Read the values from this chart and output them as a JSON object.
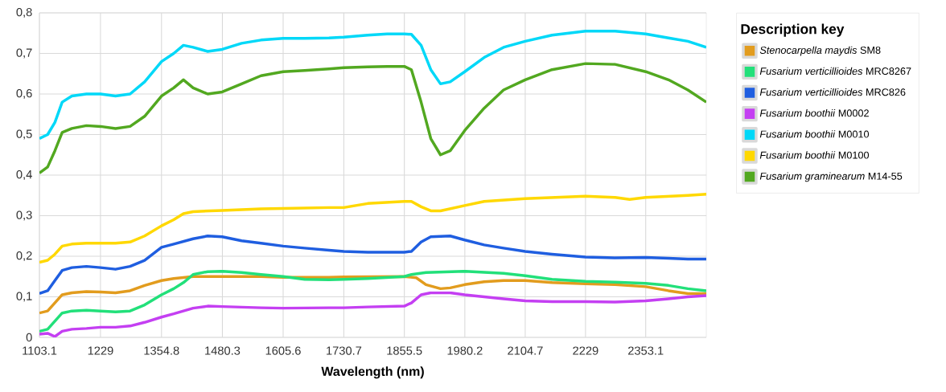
{
  "chart_data": {
    "type": "line",
    "xlabel": "Wavelength (nm)",
    "legend_title": "Description key",
    "legend": "right",
    "grid": true,
    "xlim": [
      1103.1,
      2478
    ],
    "ylim": [
      0,
      0.8
    ],
    "xticks": [
      1103.1,
      1229,
      1354.8,
      1480.3,
      1605.6,
      1730.7,
      1855.5,
      1980.2,
      2104.7,
      2229,
      2353.1
    ],
    "yticks": [
      0,
      {
        "value": 0.1,
        "label": "0,1"
      },
      {
        "value": 0.2,
        "label": "0,2"
      },
      {
        "value": 0.3,
        "label": "0,3"
      },
      {
        "value": 0.4,
        "label": "0,4"
      },
      {
        "value": 0.5,
        "label": "0,5"
      },
      {
        "value": 0.6,
        "label": "0,6"
      },
      {
        "value": 0.7,
        "label": "0,7"
      },
      {
        "value": 0.8,
        "label": "0,8"
      }
    ],
    "series": [
      {
        "name": "*Stenocarpella maydis* SM8",
        "color": "#e29c1e",
        "x": [
          1103.1,
          1120,
          1135,
          1150,
          1170,
          1200,
          1229,
          1260,
          1290,
          1320,
          1354.8,
          1380,
          1420,
          1480,
          1560,
          1605.6,
          1700,
          1730.7,
          1855.5,
          1880,
          1900,
          1930,
          1950,
          1980,
          2020,
          2060,
          2104.7,
          2160,
          2229,
          2290,
          2353.1,
          2400,
          2440,
          2478
        ],
        "values": [
          0.06,
          0.065,
          0.085,
          0.105,
          0.11,
          0.113,
          0.112,
          0.11,
          0.115,
          0.128,
          0.14,
          0.145,
          0.15,
          0.15,
          0.15,
          0.148,
          0.148,
          0.149,
          0.15,
          0.147,
          0.13,
          0.12,
          0.122,
          0.13,
          0.137,
          0.14,
          0.14,
          0.135,
          0.132,
          0.13,
          0.125,
          0.115,
          0.108,
          0.108
        ]
      },
      {
        "name": "*Fusarium verticillioides* MRC8267",
        "color": "#22e07a",
        "x": [
          1103.1,
          1120,
          1135,
          1150,
          1170,
          1200,
          1229,
          1260,
          1290,
          1320,
          1354.8,
          1380,
          1400,
          1420,
          1450,
          1480,
          1520,
          1560,
          1605.6,
          1650,
          1700,
          1730.7,
          1780,
          1855.5,
          1870,
          1900,
          1980,
          2060,
          2104.7,
          2160,
          2229,
          2290,
          2353.1,
          2400,
          2440,
          2478
        ],
        "values": [
          0.015,
          0.02,
          0.04,
          0.06,
          0.065,
          0.067,
          0.065,
          0.063,
          0.065,
          0.08,
          0.105,
          0.12,
          0.135,
          0.155,
          0.162,
          0.163,
          0.16,
          0.155,
          0.15,
          0.143,
          0.142,
          0.143,
          0.145,
          0.15,
          0.155,
          0.16,
          0.163,
          0.158,
          0.152,
          0.143,
          0.138,
          0.136,
          0.133,
          0.128,
          0.12,
          0.115
        ]
      },
      {
        "name": "*Fusarium verticillioides* MRC826",
        "color": "#1f5ee0",
        "x": [
          1103.1,
          1120,
          1135,
          1150,
          1170,
          1200,
          1229,
          1260,
          1290,
          1320,
          1354.8,
          1380,
          1420,
          1450,
          1480,
          1520,
          1560,
          1605.6,
          1650,
          1700,
          1730.7,
          1780,
          1855.5,
          1870,
          1890,
          1910,
          1950,
          1980,
          2020,
          2060,
          2104.7,
          2160,
          2229,
          2290,
          2353.1,
          2400,
          2440,
          2478
        ],
        "values": [
          0.108,
          0.115,
          0.14,
          0.165,
          0.172,
          0.175,
          0.172,
          0.168,
          0.175,
          0.19,
          0.222,
          0.23,
          0.243,
          0.25,
          0.248,
          0.238,
          0.232,
          0.225,
          0.22,
          0.215,
          0.212,
          0.21,
          0.21,
          0.212,
          0.235,
          0.248,
          0.25,
          0.24,
          0.228,
          0.22,
          0.212,
          0.205,
          0.198,
          0.196,
          0.197,
          0.195,
          0.193,
          0.193
        ]
      },
      {
        "name": "*Fusarium boothii* M0002",
        "color": "#c43ff2",
        "x": [
          1103.1,
          1120,
          1135,
          1150,
          1170,
          1200,
          1229,
          1260,
          1290,
          1320,
          1354.8,
          1380,
          1420,
          1450,
          1480,
          1560,
          1605.6,
          1700,
          1730.7,
          1780,
          1855.5,
          1870,
          1890,
          1910,
          1950,
          1980,
          2060,
          2104.7,
          2160,
          2229,
          2290,
          2353.1,
          2400,
          2440,
          2478
        ],
        "values": [
          0.008,
          0.01,
          0.002,
          0.015,
          0.02,
          0.022,
          0.025,
          0.025,
          0.028,
          0.037,
          0.05,
          0.058,
          0.072,
          0.077,
          0.076,
          0.073,
          0.072,
          0.073,
          0.073,
          0.075,
          0.077,
          0.085,
          0.105,
          0.11,
          0.11,
          0.105,
          0.095,
          0.09,
          0.088,
          0.088,
          0.087,
          0.09,
          0.095,
          0.1,
          0.103
        ]
      },
      {
        "name": "*Fusarium boothii* M0010",
        "color": "#00d8f8",
        "x": [
          1103.1,
          1120,
          1135,
          1150,
          1170,
          1200,
          1229,
          1260,
          1290,
          1320,
          1354.8,
          1380,
          1400,
          1420,
          1450,
          1480,
          1520,
          1560,
          1605.6,
          1650,
          1700,
          1730.7,
          1780,
          1820,
          1855.5,
          1870,
          1890,
          1910,
          1930,
          1950,
          1980,
          2020,
          2060,
          2104.7,
          2160,
          2229,
          2290,
          2353.1,
          2400,
          2440,
          2478
        ],
        "values": [
          0.49,
          0.5,
          0.53,
          0.58,
          0.595,
          0.6,
          0.6,
          0.595,
          0.6,
          0.63,
          0.68,
          0.7,
          0.72,
          0.715,
          0.705,
          0.71,
          0.725,
          0.733,
          0.737,
          0.737,
          0.738,
          0.74,
          0.745,
          0.748,
          0.748,
          0.747,
          0.72,
          0.66,
          0.625,
          0.63,
          0.655,
          0.69,
          0.715,
          0.73,
          0.745,
          0.755,
          0.755,
          0.748,
          0.738,
          0.73,
          0.715
        ]
      },
      {
        "name": "*Fusarium boothii* M0100",
        "color": "#ffd800",
        "x": [
          1103.1,
          1120,
          1135,
          1150,
          1170,
          1200,
          1229,
          1260,
          1290,
          1320,
          1354.8,
          1380,
          1400,
          1420,
          1480,
          1560,
          1605.6,
          1700,
          1730.7,
          1780,
          1855.5,
          1870,
          1890,
          1910,
          1930,
          1980,
          2020,
          2104.7,
          2229,
          2290,
          2320,
          2353.1,
          2440,
          2478
        ],
        "values": [
          0.185,
          0.19,
          0.205,
          0.225,
          0.23,
          0.232,
          0.232,
          0.232,
          0.235,
          0.25,
          0.275,
          0.29,
          0.305,
          0.31,
          0.313,
          0.317,
          0.318,
          0.32,
          0.32,
          0.33,
          0.335,
          0.335,
          0.322,
          0.312,
          0.312,
          0.325,
          0.335,
          0.342,
          0.348,
          0.345,
          0.34,
          0.345,
          0.35,
          0.353
        ]
      },
      {
        "name": "*Fusarium graminearum* M14-55",
        "color": "#52a820",
        "x": [
          1103.1,
          1120,
          1135,
          1150,
          1170,
          1200,
          1229,
          1260,
          1290,
          1320,
          1354.8,
          1380,
          1400,
          1420,
          1450,
          1480,
          1520,
          1560,
          1605.6,
          1650,
          1700,
          1730.7,
          1780,
          1820,
          1855.5,
          1870,
          1890,
          1910,
          1930,
          1950,
          1980,
          2020,
          2060,
          2104.7,
          2160,
          2229,
          2290,
          2353.1,
          2400,
          2440,
          2478
        ],
        "values": [
          0.405,
          0.42,
          0.46,
          0.505,
          0.515,
          0.522,
          0.52,
          0.515,
          0.52,
          0.545,
          0.595,
          0.615,
          0.635,
          0.615,
          0.6,
          0.605,
          0.625,
          0.645,
          0.655,
          0.658,
          0.662,
          0.665,
          0.667,
          0.668,
          0.668,
          0.66,
          0.58,
          0.49,
          0.45,
          0.46,
          0.51,
          0.565,
          0.61,
          0.635,
          0.66,
          0.675,
          0.673,
          0.655,
          0.635,
          0.61,
          0.58
        ]
      }
    ]
  }
}
